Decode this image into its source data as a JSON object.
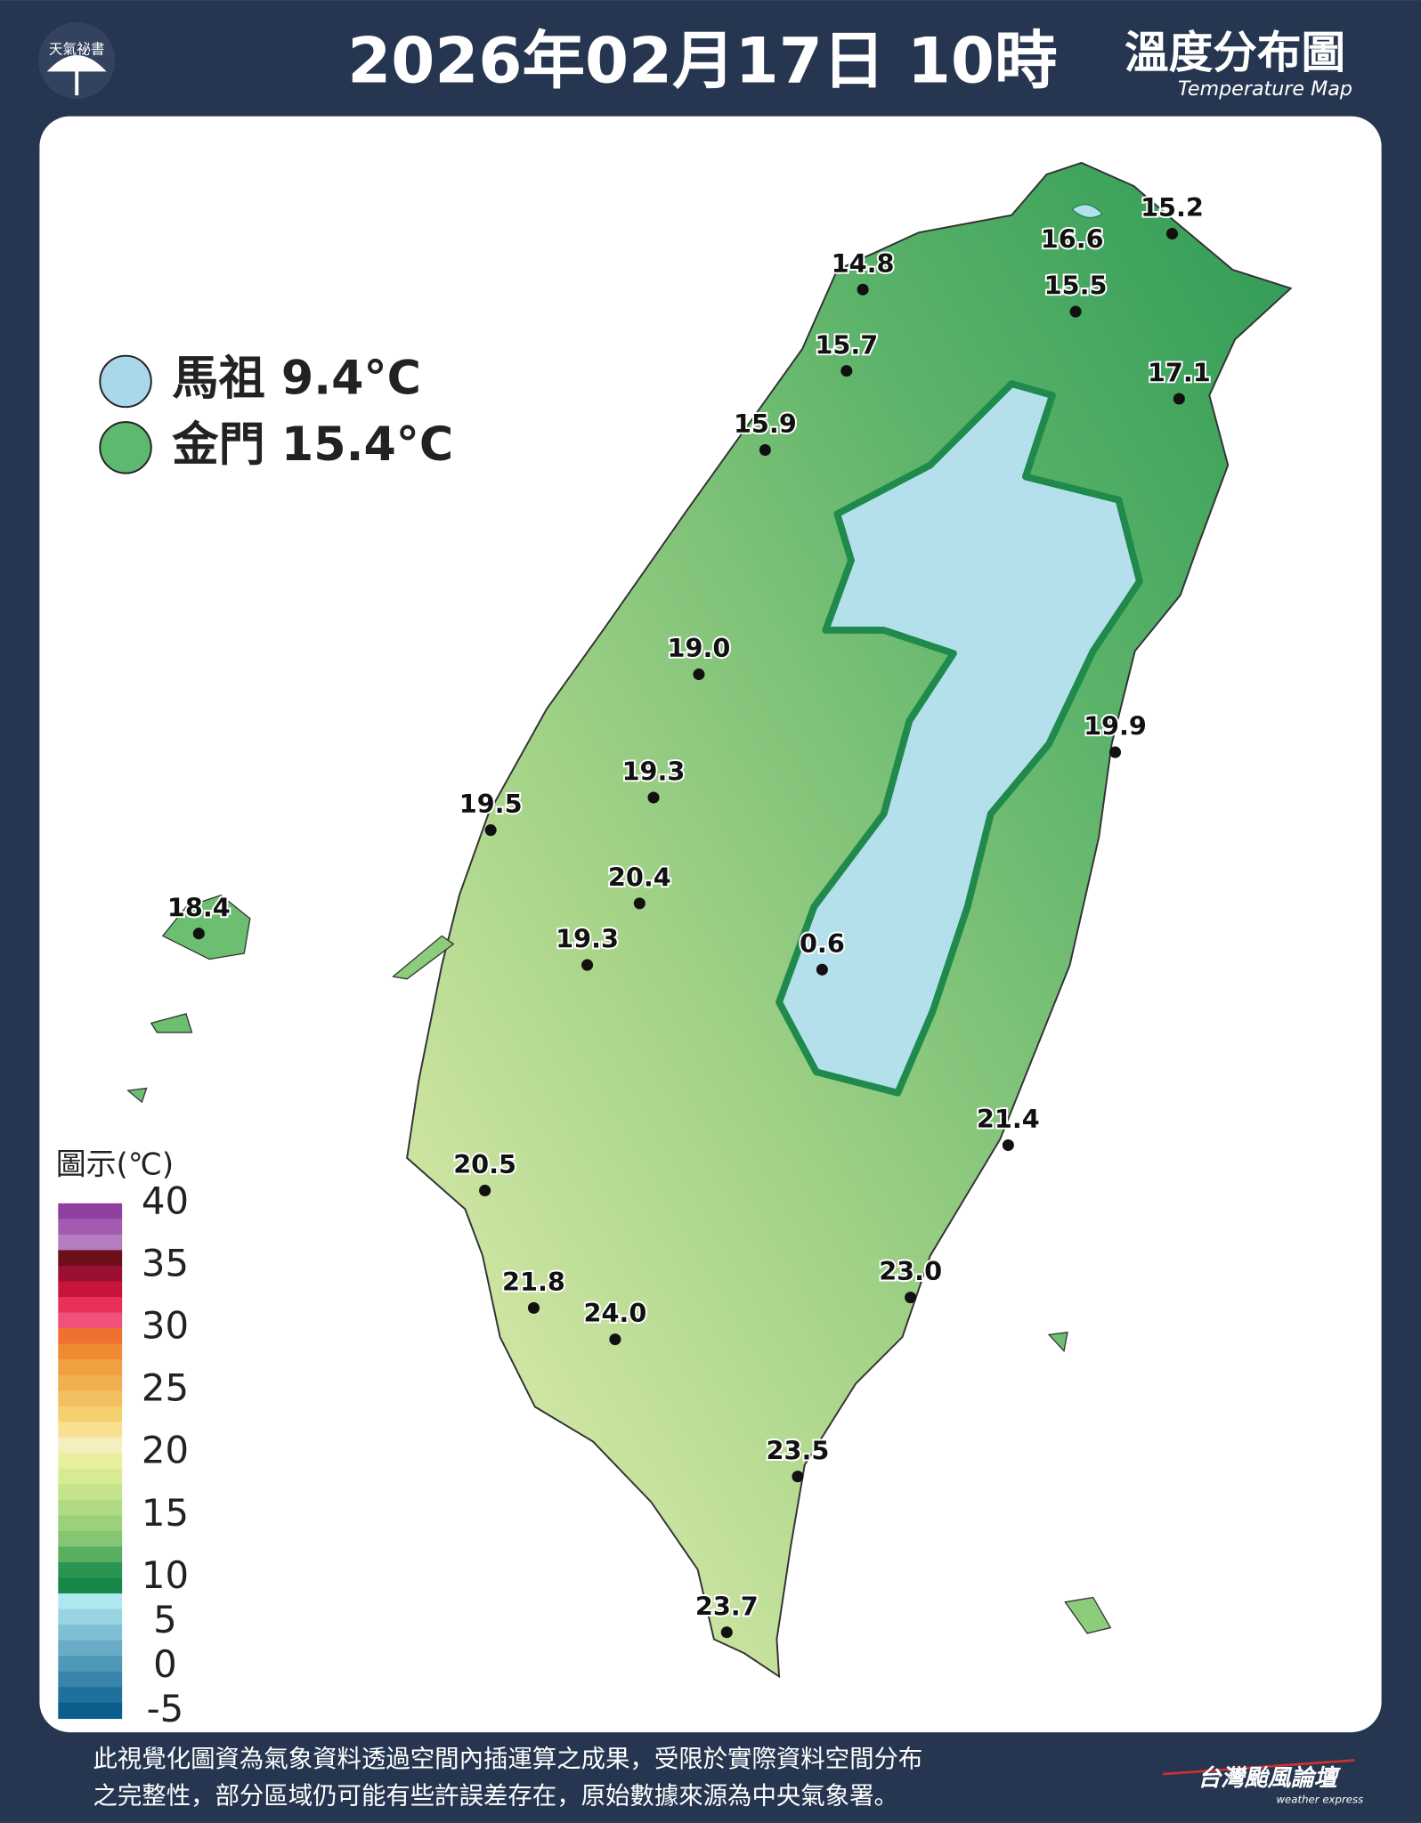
{
  "logo": "天氣祕書",
  "title": "2026年02月17日 10時",
  "subtitle": "溫度分布圖",
  "subtitle_en": "Temperature Map",
  "legend": [
    {
      "label": "馬祖 9.4°C",
      "color": "#a8d8ea"
    },
    {
      "label": "金門 15.4°C",
      "color": "#5db870"
    }
  ],
  "stations": [
    "15.2",
    "16.6",
    "14.8",
    "15.5",
    "15.7",
    "17.1",
    "15.9",
    "19.0",
    "19.9",
    "19.3",
    "19.5",
    "20.4",
    "18.4",
    "19.3",
    "0.6",
    "21.4",
    "20.5",
    "23.0",
    "21.8",
    "24.0",
    "23.5",
    "23.7"
  ],
  "colorbar": {
    "title": "圖示(℃)",
    "ticks": [
      40,
      35,
      30,
      25,
      20,
      15,
      10,
      5,
      0,
      -5
    ],
    "colors": [
      "#8e3fa0",
      "#a35bb0",
      "#b57dc0",
      "#6b0f1a",
      "#9b1030",
      "#c8143c",
      "#e8305a",
      "#f0507a",
      "#f07030",
      "#f08a30",
      "#f0a040",
      "#f0b050",
      "#f2c060",
      "#f5d070",
      "#f7e090",
      "#f5efc0",
      "#e8f0a0",
      "#d8eb90",
      "#c5e38a",
      "#b0da84",
      "#9cd17c",
      "#86c673",
      "#58af62",
      "#2a9552",
      "#18884a",
      "#b0e8f0",
      "#98d4e2",
      "#80c0d4",
      "#68acc6",
      "#5098b8",
      "#3884aa",
      "#20709c",
      "#0a5e8c"
    ]
  },
  "footer": [
    "此視覺化圖資為氣象資料透過空間內插運算之成果，受限於實際資料空間分布",
    "之完整性，部分區域仍可能有些許誤差存在，原始數據來源為中央氣象署。"
  ],
  "brand": "台灣颱風論壇",
  "brand_en": "weather express"
}
